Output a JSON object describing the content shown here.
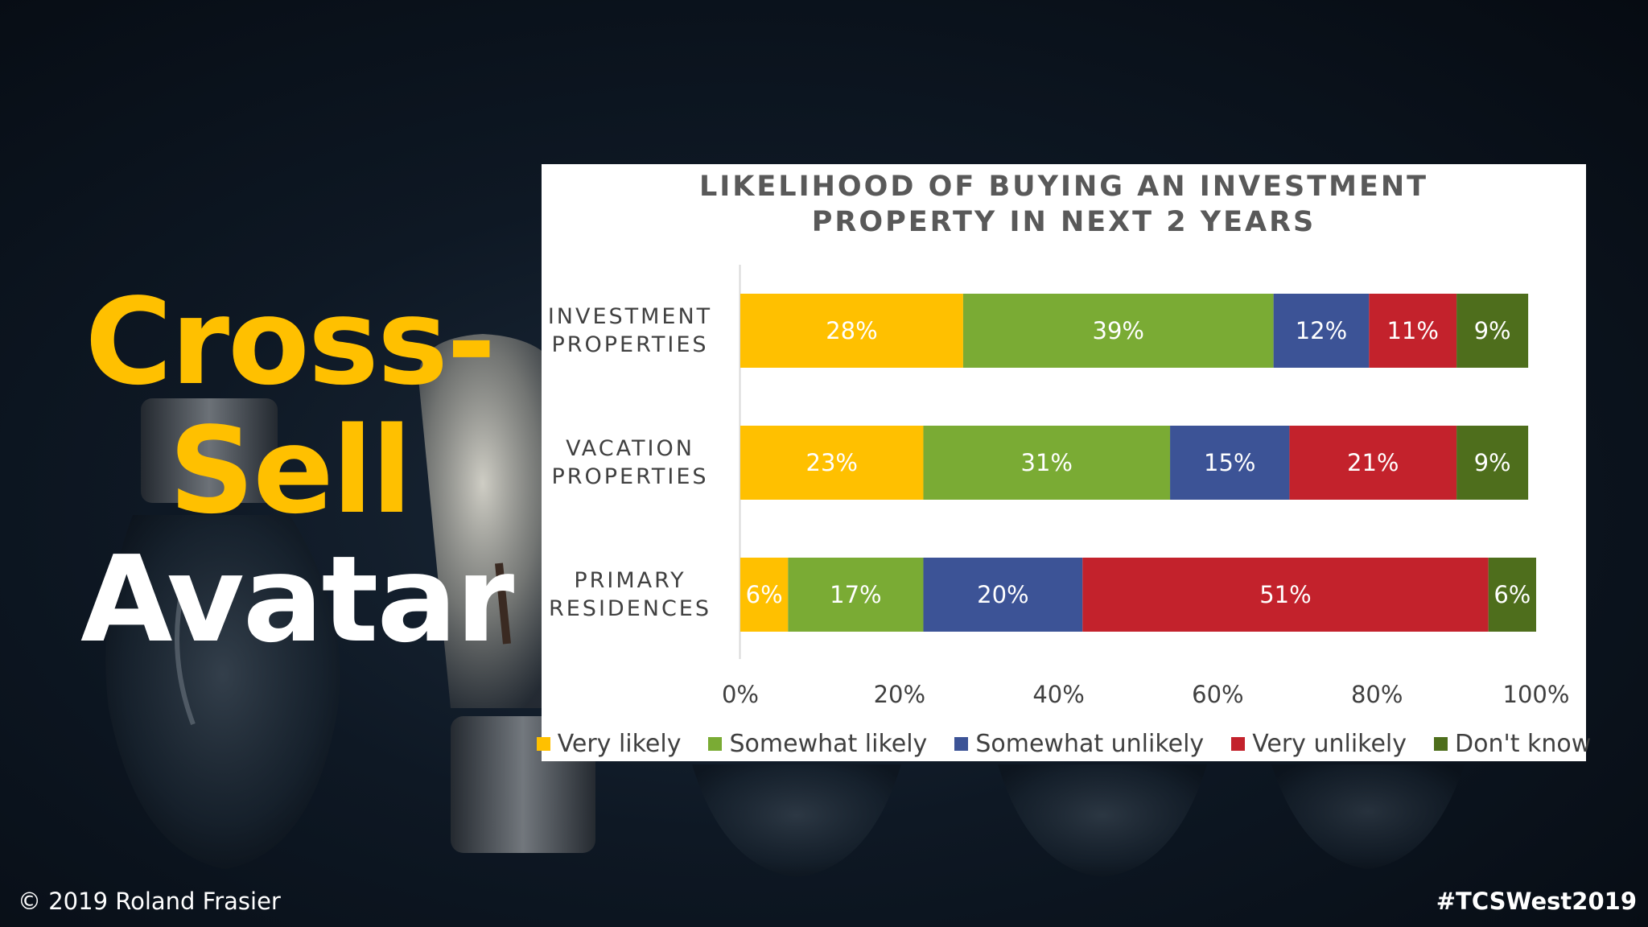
{
  "slide": {
    "headline_lines": [
      {
        "text": "Cross-",
        "color": "#ffc000"
      },
      {
        "text": "Sell",
        "color": "#ffc000"
      },
      {
        "text": "Avatar",
        "color": "#ffffff"
      }
    ],
    "copyright": "© 2019 Roland Frasier",
    "hashtag": "#TCSWest2019"
  },
  "chart_data": {
    "type": "bar",
    "orientation": "horizontal",
    "stacked": true,
    "title_lines": [
      "LIKELIHOOD OF BUYING AN INVESTMENT",
      "PROPERTY IN NEXT 2 YEARS"
    ],
    "categories": [
      {
        "lines": [
          "INVESTMENT",
          "PROPERTIES"
        ]
      },
      {
        "lines": [
          "VACATION",
          "PROPERTIES"
        ]
      },
      {
        "lines": [
          "PRIMARY",
          "RESIDENCES"
        ]
      }
    ],
    "series": [
      {
        "name": "Very likely",
        "color": "#ffc000",
        "values": [
          28,
          23,
          6
        ],
        "labels": [
          "28%",
          "23%",
          "6%"
        ]
      },
      {
        "name": "Somewhat likely",
        "color": "#7aab34",
        "values": [
          39,
          31,
          17
        ],
        "labels": [
          "39%",
          "31%",
          "17%"
        ]
      },
      {
        "name": "Somewhat unlikely",
        "color": "#3c5396",
        "values": [
          12,
          15,
          20
        ],
        "labels": [
          "12%",
          "15%",
          "20%"
        ]
      },
      {
        "name": "Very unlikely",
        "color": "#c3222c",
        "values": [
          11,
          21,
          51
        ],
        "labels": [
          "11%",
          "21%",
          "51%"
        ]
      },
      {
        "name": "Don't know",
        "color": "#4e6e1c",
        "values": [
          9,
          9,
          6
        ],
        "labels": [
          "9%",
          "9%",
          "6%"
        ]
      }
    ],
    "xlim": [
      0,
      100
    ],
    "x_ticks": [
      {
        "value": 0,
        "label": "0%"
      },
      {
        "value": 20,
        "label": "20%"
      },
      {
        "value": 40,
        "label": "40%"
      },
      {
        "value": 60,
        "label": "60%"
      },
      {
        "value": 80,
        "label": "80%"
      },
      {
        "value": 100,
        "label": "100%"
      }
    ],
    "grid": false,
    "legend_position": "bottom"
  }
}
